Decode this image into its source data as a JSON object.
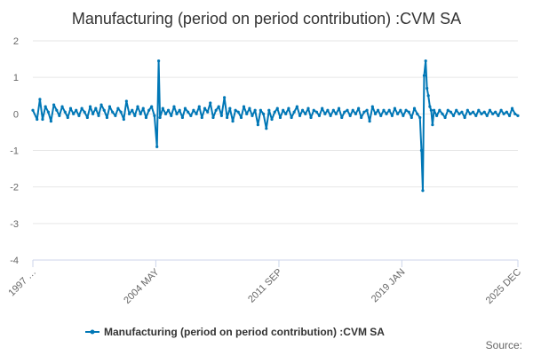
{
  "chart_data": {
    "type": "line",
    "title": "Manufacturing (period on period contribution) :CVM SA",
    "xlabel": "",
    "ylabel": "",
    "ylim": [
      -4,
      2
    ],
    "yticks": [
      2,
      1,
      0,
      -1,
      -2,
      -3,
      -4
    ],
    "xticks": [
      {
        "label": "1997 …",
        "t": 1997.0
      },
      {
        "label": "2004 MAY",
        "t": 2004.33
      },
      {
        "label": "2011 SEP",
        "t": 2011.67
      },
      {
        "label": "2019 JAN",
        "t": 2019.0
      },
      {
        "label": "2025 DEC",
        "t": 2025.92
      }
    ],
    "xlim": [
      1997.0,
      2025.92
    ],
    "grid": true,
    "legend": "bottom",
    "series": [
      {
        "name": "Manufacturing (period on period contribution) :CVM SA",
        "color": "#0077b6",
        "points": [
          [
            1997.0,
            0.1
          ],
          [
            1997.25,
            -0.15
          ],
          [
            1997.42,
            0.4
          ],
          [
            1997.58,
            -0.15
          ],
          [
            1997.75,
            0.2
          ],
          [
            1997.92,
            0.05
          ],
          [
            1998.08,
            -0.2
          ],
          [
            1998.25,
            0.25
          ],
          [
            1998.42,
            0.1
          ],
          [
            1998.58,
            -0.05
          ],
          [
            1998.75,
            0.2
          ],
          [
            1998.92,
            0.05
          ],
          [
            1999.08,
            -0.1
          ],
          [
            1999.25,
            0.15
          ],
          [
            1999.42,
            0.0
          ],
          [
            1999.58,
            0.1
          ],
          [
            1999.75,
            -0.05
          ],
          [
            1999.92,
            0.15
          ],
          [
            2000.08,
            0.05
          ],
          [
            2000.25,
            -0.1
          ],
          [
            2000.42,
            0.2
          ],
          [
            2000.58,
            0.0
          ],
          [
            2000.75,
            0.15
          ],
          [
            2000.92,
            -0.05
          ],
          [
            2001.08,
            0.25
          ],
          [
            2001.25,
            0.1
          ],
          [
            2001.42,
            -0.1
          ],
          [
            2001.58,
            0.2
          ],
          [
            2001.75,
            0.05
          ],
          [
            2001.92,
            -0.05
          ],
          [
            2002.08,
            0.15
          ],
          [
            2002.25,
            0.05
          ],
          [
            2002.42,
            -0.15
          ],
          [
            2002.58,
            0.35
          ],
          [
            2002.75,
            0.0
          ],
          [
            2002.92,
            0.1
          ],
          [
            2003.08,
            -0.05
          ],
          [
            2003.25,
            0.2
          ],
          [
            2003.42,
            0.0
          ],
          [
            2003.58,
            0.15
          ],
          [
            2003.75,
            -0.1
          ],
          [
            2003.92,
            0.1
          ],
          [
            2004.08,
            0.2
          ],
          [
            2004.25,
            -0.05
          ],
          [
            2004.4,
            -0.9
          ],
          [
            2004.5,
            1.45
          ],
          [
            2004.58,
            -0.1
          ],
          [
            2004.75,
            0.15
          ],
          [
            2004.92,
            0.0
          ],
          [
            2005.08,
            0.1
          ],
          [
            2005.25,
            -0.05
          ],
          [
            2005.42,
            0.2
          ],
          [
            2005.58,
            0.0
          ],
          [
            2005.75,
            0.1
          ],
          [
            2005.92,
            -0.1
          ],
          [
            2006.08,
            0.15
          ],
          [
            2006.25,
            0.05
          ],
          [
            2006.42,
            -0.05
          ],
          [
            2006.58,
            0.1
          ],
          [
            2006.75,
            0.0
          ],
          [
            2006.92,
            0.2
          ],
          [
            2007.08,
            -0.1
          ],
          [
            2007.25,
            0.15
          ],
          [
            2007.42,
            0.05
          ],
          [
            2007.58,
            0.3
          ],
          [
            2007.75,
            -0.1
          ],
          [
            2007.92,
            0.1
          ],
          [
            2008.08,
            0.2
          ],
          [
            2008.25,
            -0.05
          ],
          [
            2008.42,
            0.45
          ],
          [
            2008.58,
            -0.1
          ],
          [
            2008.75,
            0.15
          ],
          [
            2008.92,
            -0.2
          ],
          [
            2009.08,
            0.1
          ],
          [
            2009.25,
            0.05
          ],
          [
            2009.42,
            -0.1
          ],
          [
            2009.58,
            0.2
          ],
          [
            2009.75,
            0.0
          ],
          [
            2009.92,
            0.15
          ],
          [
            2010.08,
            -0.05
          ],
          [
            2010.25,
            0.1
          ],
          [
            2010.42,
            -0.3
          ],
          [
            2010.58,
            0.1
          ],
          [
            2010.75,
            0.0
          ],
          [
            2010.92,
            -0.4
          ],
          [
            2011.08,
            0.1
          ],
          [
            2011.25,
            -0.15
          ],
          [
            2011.42,
            0.05
          ],
          [
            2011.58,
            0.15
          ],
          [
            2011.75,
            -0.1
          ],
          [
            2011.92,
            0.1
          ],
          [
            2012.08,
            0.0
          ],
          [
            2012.25,
            0.15
          ],
          [
            2012.42,
            -0.1
          ],
          [
            2012.58,
            0.05
          ],
          [
            2012.75,
            0.2
          ],
          [
            2012.92,
            -0.05
          ],
          [
            2013.08,
            0.1
          ],
          [
            2013.25,
            0.0
          ],
          [
            2013.42,
            0.15
          ],
          [
            2013.58,
            -0.1
          ],
          [
            2013.75,
            0.1
          ],
          [
            2013.92,
            0.05
          ],
          [
            2014.08,
            -0.05
          ],
          [
            2014.25,
            0.15
          ],
          [
            2014.42,
            0.0
          ],
          [
            2014.58,
            0.1
          ],
          [
            2014.75,
            -0.05
          ],
          [
            2014.92,
            0.1
          ],
          [
            2015.08,
            0.0
          ],
          [
            2015.25,
            0.15
          ],
          [
            2015.42,
            -0.1
          ],
          [
            2015.58,
            0.05
          ],
          [
            2015.75,
            0.1
          ],
          [
            2015.92,
            -0.05
          ],
          [
            2016.08,
            0.1
          ],
          [
            2016.25,
            0.0
          ],
          [
            2016.42,
            0.15
          ],
          [
            2016.58,
            -0.1
          ],
          [
            2016.75,
            0.05
          ],
          [
            2016.92,
            0.1
          ],
          [
            2017.08,
            -0.2
          ],
          [
            2017.25,
            0.2
          ],
          [
            2017.42,
            0.0
          ],
          [
            2017.58,
            0.1
          ],
          [
            2017.75,
            -0.05
          ],
          [
            2017.92,
            0.1
          ],
          [
            2018.08,
            0.0
          ],
          [
            2018.25,
            0.1
          ],
          [
            2018.42,
            -0.05
          ],
          [
            2018.58,
            0.15
          ],
          [
            2018.75,
            0.0
          ],
          [
            2018.92,
            0.1
          ],
          [
            2019.08,
            -0.05
          ],
          [
            2019.25,
            0.1
          ],
          [
            2019.42,
            0.05
          ],
          [
            2019.58,
            -0.1
          ],
          [
            2019.75,
            0.15
          ],
          [
            2019.92,
            0.0
          ],
          [
            2020.08,
            -0.1
          ],
          [
            2020.17,
            -1.0
          ],
          [
            2020.25,
            -2.1
          ],
          [
            2020.33,
            1.05
          ],
          [
            2020.42,
            1.45
          ],
          [
            2020.5,
            0.7
          ],
          [
            2020.58,
            0.5
          ],
          [
            2020.67,
            0.2
          ],
          [
            2020.75,
            0.1
          ],
          [
            2020.83,
            -0.3
          ],
          [
            2020.92,
            0.1
          ],
          [
            2021.08,
            -0.05
          ],
          [
            2021.25,
            0.1
          ],
          [
            2021.42,
            0.0
          ],
          [
            2021.58,
            -0.1
          ],
          [
            2021.75,
            0.1
          ],
          [
            2021.92,
            0.05
          ],
          [
            2022.08,
            -0.05
          ],
          [
            2022.25,
            0.1
          ],
          [
            2022.42,
            0.0
          ],
          [
            2022.58,
            0.05
          ],
          [
            2022.75,
            -0.1
          ],
          [
            2022.92,
            0.1
          ],
          [
            2023.08,
            0.0
          ],
          [
            2023.25,
            0.05
          ],
          [
            2023.42,
            -0.05
          ],
          [
            2023.58,
            0.1
          ],
          [
            2023.75,
            0.0
          ],
          [
            2023.92,
            0.05
          ],
          [
            2024.08,
            -0.05
          ],
          [
            2024.25,
            0.1
          ],
          [
            2024.42,
            0.0
          ],
          [
            2024.58,
            0.05
          ],
          [
            2024.75,
            -0.05
          ],
          [
            2024.92,
            0.1
          ],
          [
            2025.08,
            0.0
          ],
          [
            2025.25,
            0.05
          ],
          [
            2025.42,
            -0.05
          ],
          [
            2025.58,
            0.15
          ],
          [
            2025.75,
            0.0
          ],
          [
            2025.92,
            -0.05
          ]
        ]
      }
    ]
  },
  "legend": {
    "label": "Manufacturing (period on period contribution) :CVM SA"
  },
  "source_label": "Source:"
}
